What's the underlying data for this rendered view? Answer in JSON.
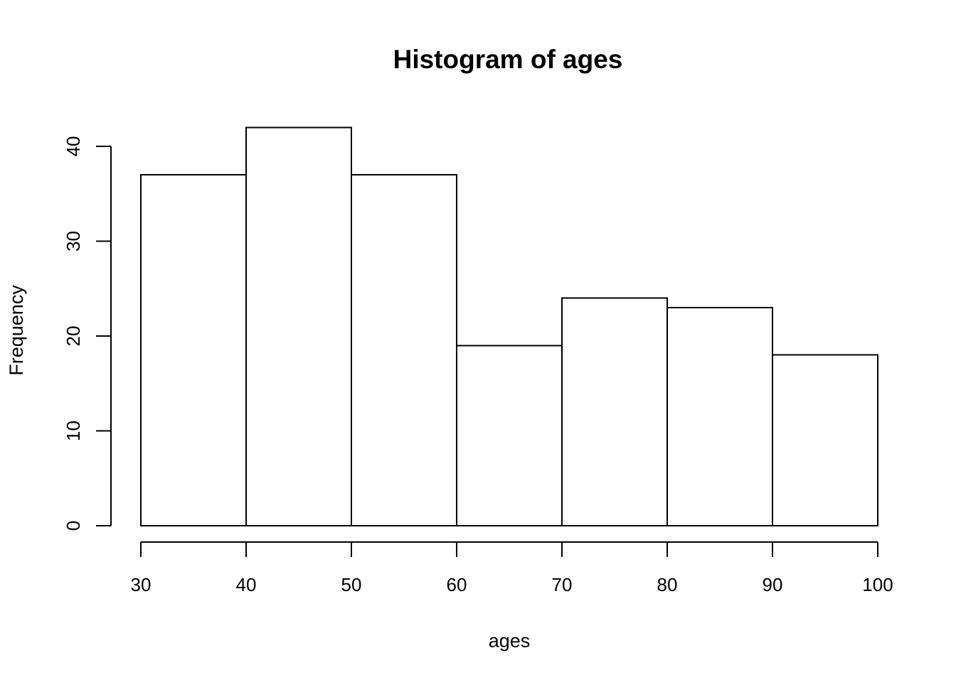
{
  "chart_data": {
    "type": "bar",
    "subtype": "histogram",
    "title": "Histogram of ages",
    "xlabel": "ages",
    "ylabel": "Frequency",
    "bin_edges": [
      30,
      40,
      50,
      60,
      70,
      80,
      90,
      100
    ],
    "values": [
      37,
      42,
      37,
      19,
      24,
      23,
      18
    ],
    "x_ticks": [
      30,
      40,
      50,
      60,
      70,
      80,
      90,
      100
    ],
    "y_ticks": [
      0,
      10,
      20,
      30,
      40
    ],
    "xlim": [
      30,
      100
    ],
    "ylim": [
      0,
      40
    ],
    "grid": false,
    "legend": "none",
    "colors": {
      "bar_fill": "#ffffff",
      "bar_stroke": "#000000",
      "axis": "#000000",
      "text": "#000000",
      "background": "#ffffff"
    }
  }
}
